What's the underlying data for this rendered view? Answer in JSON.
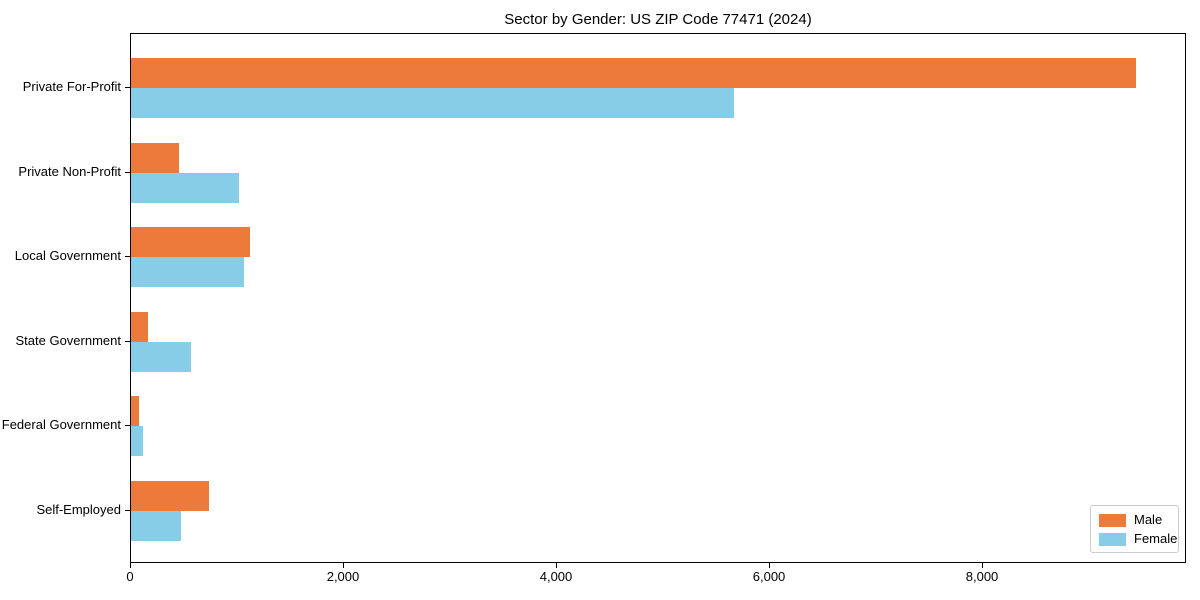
{
  "title": "Sector by Gender: US ZIP Code 77471 (2024)",
  "colors": {
    "male": "#EB7A3B",
    "female": "#87CDE8",
    "axis": "#000000",
    "legend_border": "#CCCCCC",
    "background": "#FFFFFF"
  },
  "chart_data": {
    "type": "bar",
    "orientation": "horizontal",
    "title": "Sector by Gender: US ZIP Code 77471 (2024)",
    "categories": [
      "Private For-Profit",
      "Private Non-Profit",
      "Local Government",
      "State Government",
      "Federal Government",
      "Self-Employed"
    ],
    "series": [
      {
        "name": "Male",
        "color": "#EB7A3B",
        "values": [
          9440,
          450,
          1120,
          160,
          75,
          730
        ]
      },
      {
        "name": "Female",
        "color": "#87CDE8",
        "values": [
          5660,
          1010,
          1060,
          560,
          110,
          470
        ]
      }
    ],
    "xlabel": "",
    "ylabel": "",
    "xlim": [
      0,
      9915
    ],
    "xticks": [
      0,
      2000,
      4000,
      6000,
      8000
    ],
    "xtick_labels": [
      "0",
      "2,000",
      "4,000",
      "6,000",
      "8,000"
    ],
    "legend_position": "lower right",
    "grid": false
  },
  "legend": {
    "items": [
      {
        "label": "Male"
      },
      {
        "label": "Female"
      }
    ]
  }
}
